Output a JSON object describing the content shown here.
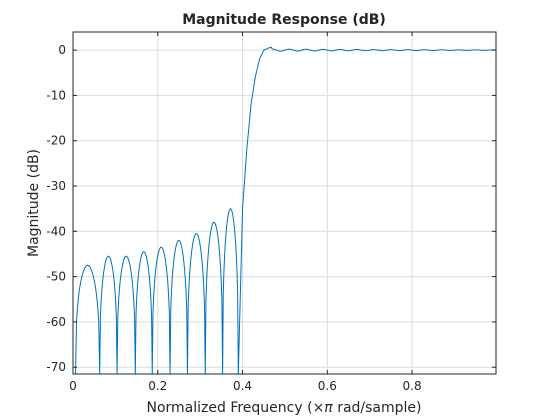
{
  "chart_data": {
    "type": "line",
    "title": "Magnitude Response (dB)",
    "xlabel_main": "Normalized Frequency  (",
    "xlabel_unit": "×π",
    "xlabel_end": " rad/sample)",
    "ylabel": "Magnitude (dB)",
    "xlim": [
      0,
      0.998
    ],
    "ylim": [
      -71.5,
      4
    ],
    "x_ticks": [
      0,
      0.2,
      0.4,
      0.6,
      0.8
    ],
    "x_tick_labels": [
      "0",
      "0.2",
      "0.4",
      "0.6",
      "0.8"
    ],
    "y_ticks": [
      0,
      -10,
      -20,
      -30,
      -40,
      -50,
      -60,
      -70
    ],
    "y_tick_labels": [
      "0",
      "-10",
      "-20",
      "-30",
      "-40",
      "-50",
      "-60",
      "-70"
    ],
    "grid": true,
    "series_color": "#0072BD",
    "stopband_nulls": [
      0.006,
      0.063,
      0.104,
      0.147,
      0.187,
      0.229,
      0.27,
      0.312,
      0.353,
      0.39
    ],
    "stopband_lobe_peaks": [
      -47.5,
      -45.5,
      -45.5,
      -44.5,
      -43.5,
      -42,
      -40.5,
      -38,
      -35,
      -30
    ],
    "transition_band": {
      "x": [
        0.39,
        0.4,
        0.41,
        0.42,
        0.43,
        0.44,
        0.45,
        0.46
      ],
      "y": [
        -71.5,
        -35,
        -22,
        -12,
        -6,
        -2,
        0,
        0.4
      ]
    },
    "passband_ripple": {
      "x_start": 0.46,
      "x_end": 0.998,
      "ripple_db": 0.25,
      "period": 0.04
    }
  }
}
